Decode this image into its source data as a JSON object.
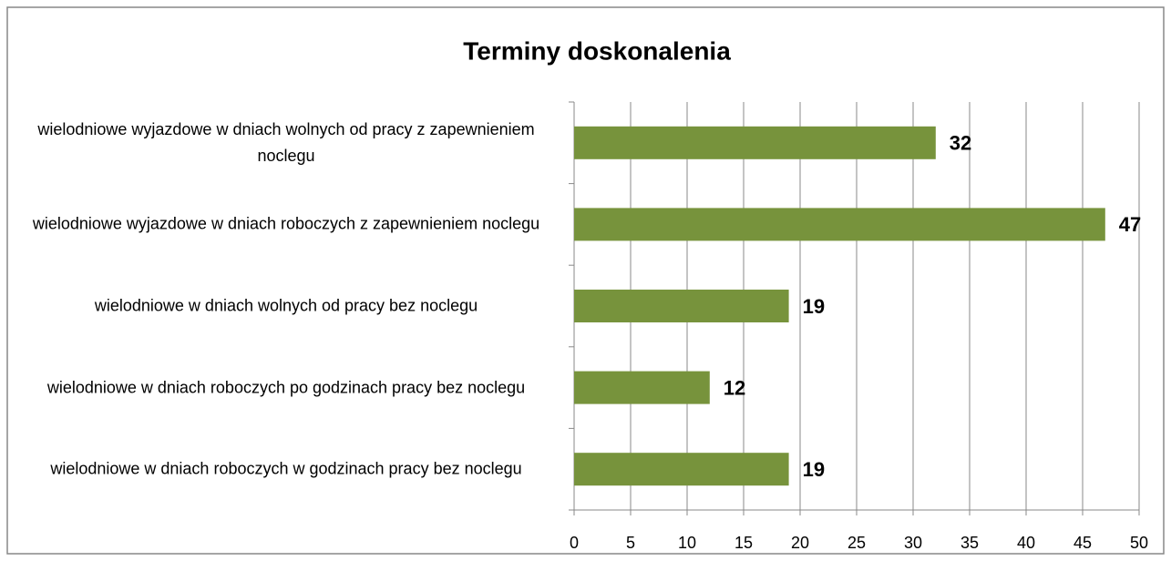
{
  "chart_data": {
    "type": "bar",
    "orientation": "horizontal",
    "title": "Terminy doskonalenia",
    "categories": [
      "wielodniowe wyjazdowe w dniach wolnych od pracy z zapewnieniem noclegu",
      "wielodniowe wyjazdowe w dniach roboczych z zapewnieniem noclegu",
      "wielodniowe w dniach wolnych od pracy bez noclegu",
      "wielodniowe w dniach roboczych po godzinach pracy bez noclegu",
      "wielodniowe w dniach roboczych w godzinach pracy bez noclegu"
    ],
    "values": [
      32,
      47,
      19,
      12,
      19
    ],
    "color": "#77933c",
    "xlim": [
      0,
      50
    ],
    "xticks": [
      0,
      5,
      10,
      15,
      20,
      25,
      30,
      35,
      40,
      45,
      50
    ],
    "grid": true
  }
}
